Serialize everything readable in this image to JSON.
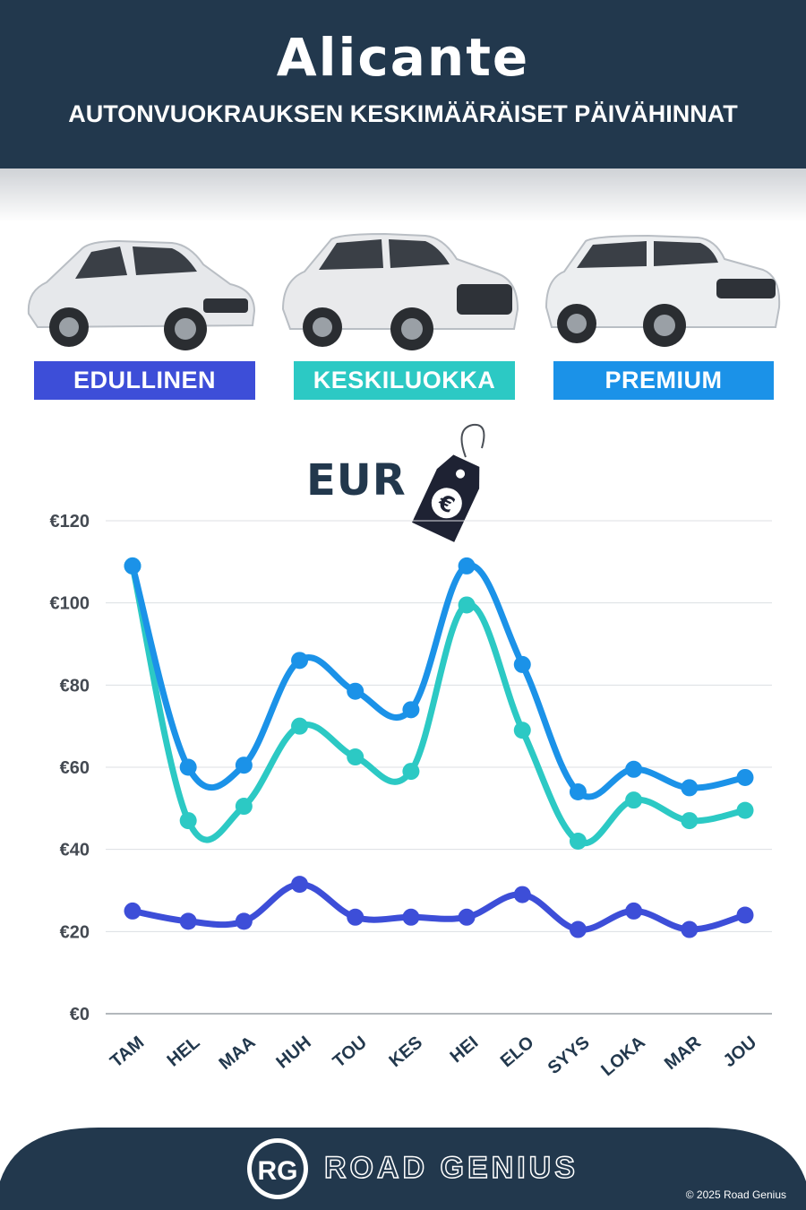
{
  "header": {
    "title": "Alicante",
    "subtitle": "AUTONVUOKRAUKSEN KESKIMÄÄRÄISET PÄIVÄHINNAT"
  },
  "categories": [
    {
      "label": "EDULLINEN",
      "color": "#3d4ed8"
    },
    {
      "label": "KESKILUOKKA",
      "color": "#2cc9c4"
    },
    {
      "label": "PREMIUM",
      "color": "#1b92e8"
    }
  ],
  "currency_label": "EUR",
  "tag_symbol": "€",
  "chart_data": {
    "type": "line",
    "categories": [
      "TAM",
      "HEL",
      "MAA",
      "HUH",
      "TOU",
      "KES",
      "HEI",
      "ELO",
      "SYYS",
      "LOKA",
      "MAR",
      "JOU"
    ],
    "ylim": [
      0,
      120
    ],
    "y_ticks": [
      "€0",
      "€20",
      "€40",
      "€60",
      "€80",
      "€100",
      "€120"
    ],
    "grid": true,
    "series": [
      {
        "name": "EDULLINEN",
        "color": "#3d4ed8",
        "values": [
          25,
          22.5,
          22.5,
          31.5,
          23.5,
          23.5,
          23.5,
          29,
          20.5,
          25,
          20.5,
          24
        ]
      },
      {
        "name": "KESKILUOKKA",
        "color": "#2cc9c4",
        "values": [
          109,
          47,
          50.5,
          70,
          62.5,
          59,
          99.5,
          69,
          42,
          52,
          47,
          49.5
        ]
      },
      {
        "name": "PREMIUM",
        "color": "#1b92e8",
        "values": [
          109,
          60,
          60.5,
          86,
          78.5,
          74,
          109,
          85,
          54,
          59.5,
          55,
          57.5
        ]
      }
    ]
  },
  "footer": {
    "logo_text": "RG",
    "brand": "ROAD GENIUS",
    "copyright": "© 2025 Road Genius"
  }
}
